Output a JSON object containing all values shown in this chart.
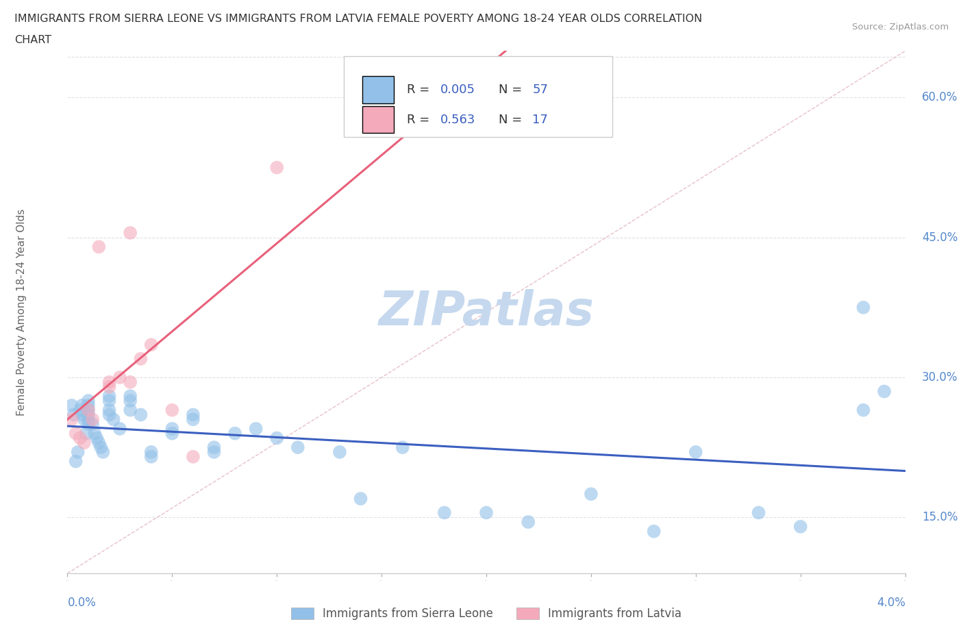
{
  "title_line1": "IMMIGRANTS FROM SIERRA LEONE VS IMMIGRANTS FROM LATVIA FEMALE POVERTY AMONG 18-24 YEAR OLDS CORRELATION",
  "title_line2": "CHART",
  "source": "Source: ZipAtlas.com",
  "ylabel": "Female Poverty Among 18-24 Year Olds",
  "xlim": [
    0.0,
    0.04
  ],
  "ylim": [
    0.09,
    0.65
  ],
  "xticks": [
    0.0,
    0.01,
    0.02,
    0.03,
    0.04
  ],
  "xticklabels_ends": [
    "0.0%",
    "4.0%"
  ],
  "yticks": [
    0.15,
    0.3,
    0.45,
    0.6
  ],
  "yticklabels": [
    "15.0%",
    "30.0%",
    "45.0%",
    "60.0%"
  ],
  "blue_color": "#92C0E8",
  "pink_color": "#F4AABB",
  "blue_line_color": "#3B5FC0",
  "pink_line_color": "#E8607A",
  "diag_line_color": "#E0B0BB",
  "watermark_text": "ZIPatlas",
  "watermark_color": "#C5D8EE",
  "legend_label1": "Immigrants from Sierra Leone",
  "legend_label2": "Immigrants from Latvia",
  "tick_color": "#5588CC",
  "grid_color": "#E0E0E8",
  "blue_x": [
    0.0002,
    0.0003,
    0.0004,
    0.0005,
    0.0006,
    0.0007,
    0.0007,
    0.0008,
    0.0009,
    0.001,
    0.001,
    0.001,
    0.001,
    0.001,
    0.001,
    0.0012,
    0.0013,
    0.0014,
    0.0015,
    0.0016,
    0.0017,
    0.002,
    0.002,
    0.002,
    0.002,
    0.0022,
    0.0025,
    0.003,
    0.003,
    0.003,
    0.0035,
    0.004,
    0.004,
    0.005,
    0.005,
    0.006,
    0.006,
    0.007,
    0.007,
    0.008,
    0.009,
    0.01,
    0.011,
    0.013,
    0.014,
    0.016,
    0.018,
    0.02,
    0.022,
    0.025,
    0.028,
    0.03,
    0.033,
    0.035,
    0.038,
    0.039,
    0.038
  ],
  "blue_y": [
    0.27,
    0.26,
    0.21,
    0.22,
    0.265,
    0.27,
    0.26,
    0.255,
    0.24,
    0.275,
    0.27,
    0.265,
    0.26,
    0.255,
    0.25,
    0.25,
    0.24,
    0.235,
    0.23,
    0.225,
    0.22,
    0.28,
    0.275,
    0.265,
    0.26,
    0.255,
    0.245,
    0.28,
    0.275,
    0.265,
    0.26,
    0.22,
    0.215,
    0.245,
    0.24,
    0.26,
    0.255,
    0.225,
    0.22,
    0.24,
    0.245,
    0.235,
    0.225,
    0.22,
    0.17,
    0.225,
    0.155,
    0.155,
    0.145,
    0.175,
    0.135,
    0.22,
    0.155,
    0.14,
    0.375,
    0.285,
    0.265
  ],
  "pink_x": [
    0.0002,
    0.0004,
    0.0006,
    0.0008,
    0.001,
    0.0012,
    0.0015,
    0.002,
    0.002,
    0.0025,
    0.003,
    0.003,
    0.0035,
    0.004,
    0.005,
    0.006,
    0.01
  ],
  "pink_y": [
    0.255,
    0.24,
    0.235,
    0.23,
    0.265,
    0.255,
    0.44,
    0.295,
    0.29,
    0.3,
    0.455,
    0.295,
    0.32,
    0.335,
    0.265,
    0.215,
    0.525
  ],
  "background_color": "#FFFFFF"
}
